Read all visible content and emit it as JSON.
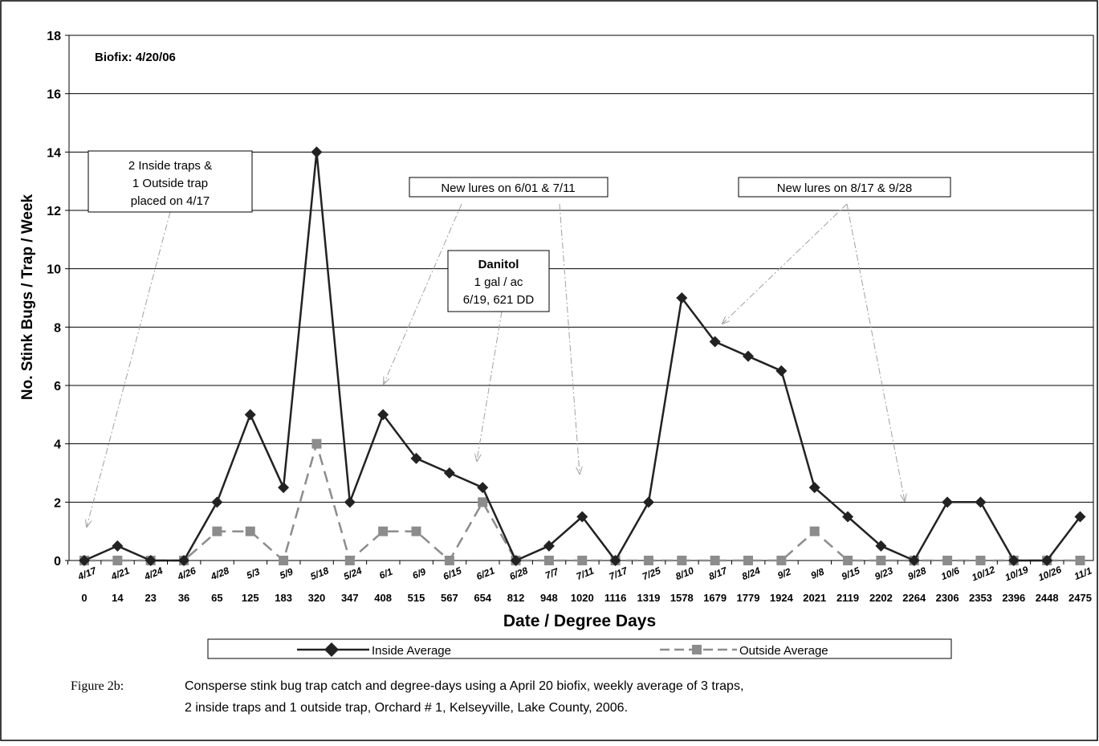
{
  "chart_data": {
    "type": "line",
    "ylabel": "No. Stink Bugs / Trap / Week",
    "xlabel": "Date / Degree Days",
    "ylim": [
      0,
      18
    ],
    "yticks": [
      0,
      2,
      4,
      6,
      8,
      10,
      12,
      14,
      16,
      18
    ],
    "grid": "horizontal",
    "categories": [
      "4/17",
      "4/21",
      "4/24",
      "4/26",
      "4/28",
      "5/3",
      "5/9",
      "5/18",
      "5/24",
      "6/1",
      "6/9",
      "6/15",
      "6/21",
      "6/28",
      "7/7",
      "7/11",
      "7/17",
      "7/25",
      "8/10",
      "8/17",
      "8/24",
      "9/2",
      "9/8",
      "9/15",
      "9/23",
      "9/28",
      "10/6",
      "10/12",
      "10/19",
      "10/26",
      "11/1"
    ],
    "degree_days": [
      "0",
      "14",
      "23",
      "36",
      "65",
      "125",
      "183",
      "320",
      "347",
      "408",
      "515",
      "567",
      "654",
      "812",
      "948",
      "1020",
      "1116",
      "1319",
      "1578",
      "1679",
      "1779",
      "1924",
      "2021",
      "2119",
      "2202",
      "2264",
      "2306",
      "2353",
      "2396",
      "2448",
      "2475"
    ],
    "series": [
      {
        "name": "Inside Average",
        "color": "#222222",
        "marker": "diamond",
        "dash": "solid",
        "values": [
          0,
          0.5,
          0,
          0,
          2,
          5,
          2.5,
          14,
          2,
          5,
          3.5,
          3,
          2.5,
          0,
          0.5,
          1.5,
          0,
          2,
          9,
          7.5,
          7,
          6.5,
          2.5,
          1.5,
          0.5,
          0,
          2,
          2,
          0,
          0,
          1.5
        ]
      },
      {
        "name": "Outside Average",
        "color": "#8c8c8c",
        "marker": "square",
        "dash": "dashed",
        "values": [
          0,
          0,
          0,
          0,
          1,
          1,
          0,
          4,
          0,
          1,
          1,
          0,
          2,
          0,
          0,
          0,
          0,
          0,
          0,
          0,
          0,
          0,
          1,
          0,
          0,
          0,
          0,
          0,
          0,
          0,
          0
        ]
      }
    ],
    "legend_position": "bottom",
    "annotations": {
      "biofix": "Biofix: 4/20/06",
      "traps": [
        "2 Inside traps &",
        "1 Outside trap",
        "placed on 4/17"
      ],
      "lures1": "New lures on 6/01 & 7/11",
      "lures2": "New lures on 8/17 &  9/28",
      "danitol": [
        "Danitol",
        "1 gal / ac",
        "6/19, 621 DD"
      ]
    }
  },
  "caption": {
    "label": "Figure 2b:",
    "line1": "Consperse stink bug trap catch and degree-days using a April 20 biofix, weekly average of 3 traps,",
    "line2": "2 inside traps and 1 outside trap, Orchard # 1, Kelseyville, Lake County, 2006."
  }
}
